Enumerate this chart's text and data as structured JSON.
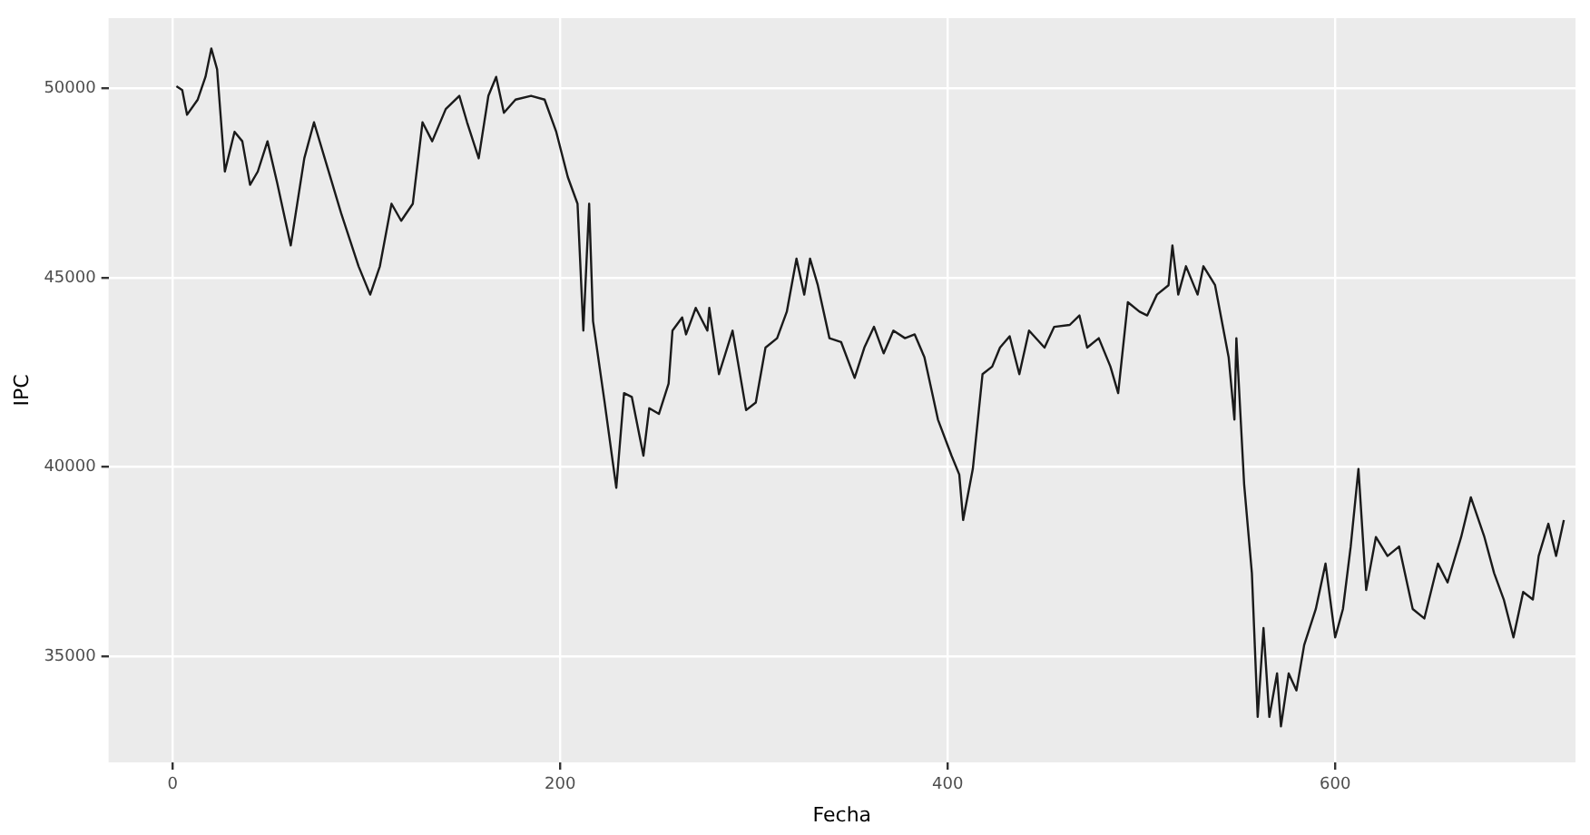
{
  "chart_data": {
    "type": "line",
    "xlabel": "Fecha",
    "ylabel": "IPC",
    "xlim": [
      -33,
      724
    ],
    "ylim": [
      32200,
      51850
    ],
    "xticks": [
      0,
      200,
      400,
      600
    ],
    "yticks": [
      35000,
      40000,
      45000,
      50000
    ],
    "grid": true,
    "legend": false,
    "marker": "none",
    "line_style": "solid",
    "series": [
      {
        "color": "#1a1a1a",
        "x": [
          2,
          5,
          7.5,
          13,
          17,
          20,
          23,
          27,
          32,
          36,
          40,
          44,
          49,
          54,
          61,
          68,
          73,
          80,
          87,
          96,
          102,
          107,
          113,
          118,
          124,
          129,
          134,
          141,
          148,
          152,
          158,
          163,
          167,
          171,
          177,
          185,
          192,
          198,
          204,
          209,
          212,
          215,
          217,
          223,
          229,
          233,
          237,
          243,
          246,
          251,
          256,
          258,
          263,
          265,
          270,
          276,
          277,
          282,
          289,
          296,
          301,
          306,
          312,
          317,
          322,
          326,
          329,
          333,
          339,
          345,
          352,
          357,
          362,
          367,
          372,
          378,
          383,
          388,
          395,
          402,
          406,
          408,
          413,
          418,
          423,
          427,
          432,
          437,
          442,
          450,
          455,
          463,
          468,
          472,
          478,
          484,
          488,
          493,
          499,
          503,
          508,
          514,
          516,
          519,
          523,
          529,
          532,
          538,
          545,
          548,
          549,
          553,
          557,
          560,
          563,
          566,
          570,
          572,
          576,
          580,
          584,
          590,
          595,
          600,
          604,
          608,
          612,
          616,
          621,
          627,
          633,
          640,
          646,
          653,
          658,
          665,
          670,
          677,
          682,
          687,
          692,
          697,
          702,
          705,
          710,
          714,
          718
        ],
        "values": [
          50050,
          49950,
          49300,
          49700,
          50300,
          51050,
          50500,
          47800,
          48850,
          48600,
          47450,
          47800,
          48600,
          47500,
          45850,
          48150,
          49100,
          47900,
          46700,
          45300,
          44550,
          45300,
          46950,
          46500,
          46950,
          49100,
          48600,
          49450,
          49800,
          49100,
          48150,
          49800,
          50300,
          49350,
          49700,
          49800,
          49700,
          48850,
          47650,
          46950,
          43600,
          46950,
          43850,
          41700,
          39450,
          41950,
          41850,
          40300,
          41550,
          41400,
          42200,
          43600,
          43950,
          43500,
          44200,
          43600,
          44200,
          42450,
          43600,
          41500,
          41700,
          43150,
          43400,
          44100,
          45500,
          44550,
          45500,
          44800,
          43400,
          43300,
          42350,
          43150,
          43700,
          43000,
          43600,
          43400,
          43500,
          42900,
          41250,
          40300,
          39800,
          38600,
          39950,
          42450,
          42650,
          43150,
          43450,
          42450,
          43600,
          43150,
          43700,
          43750,
          44000,
          43150,
          43400,
          42650,
          41950,
          44350,
          44100,
          44000,
          44550,
          44800,
          45850,
          44550,
          45300,
          44550,
          45300,
          44800,
          42900,
          41250,
          43400,
          39550,
          37200,
          33400,
          35750,
          33400,
          34550,
          33150,
          34550,
          34100,
          35300,
          36250,
          37450,
          35500,
          36250,
          37900,
          39950,
          36750,
          38150,
          37650,
          37900,
          36250,
          36000,
          37450,
          36950,
          38150,
          39200,
          38150,
          37200,
          36500,
          35500,
          36700,
          36500,
          37650,
          38500,
          37650,
          38600
        ]
      }
    ]
  }
}
